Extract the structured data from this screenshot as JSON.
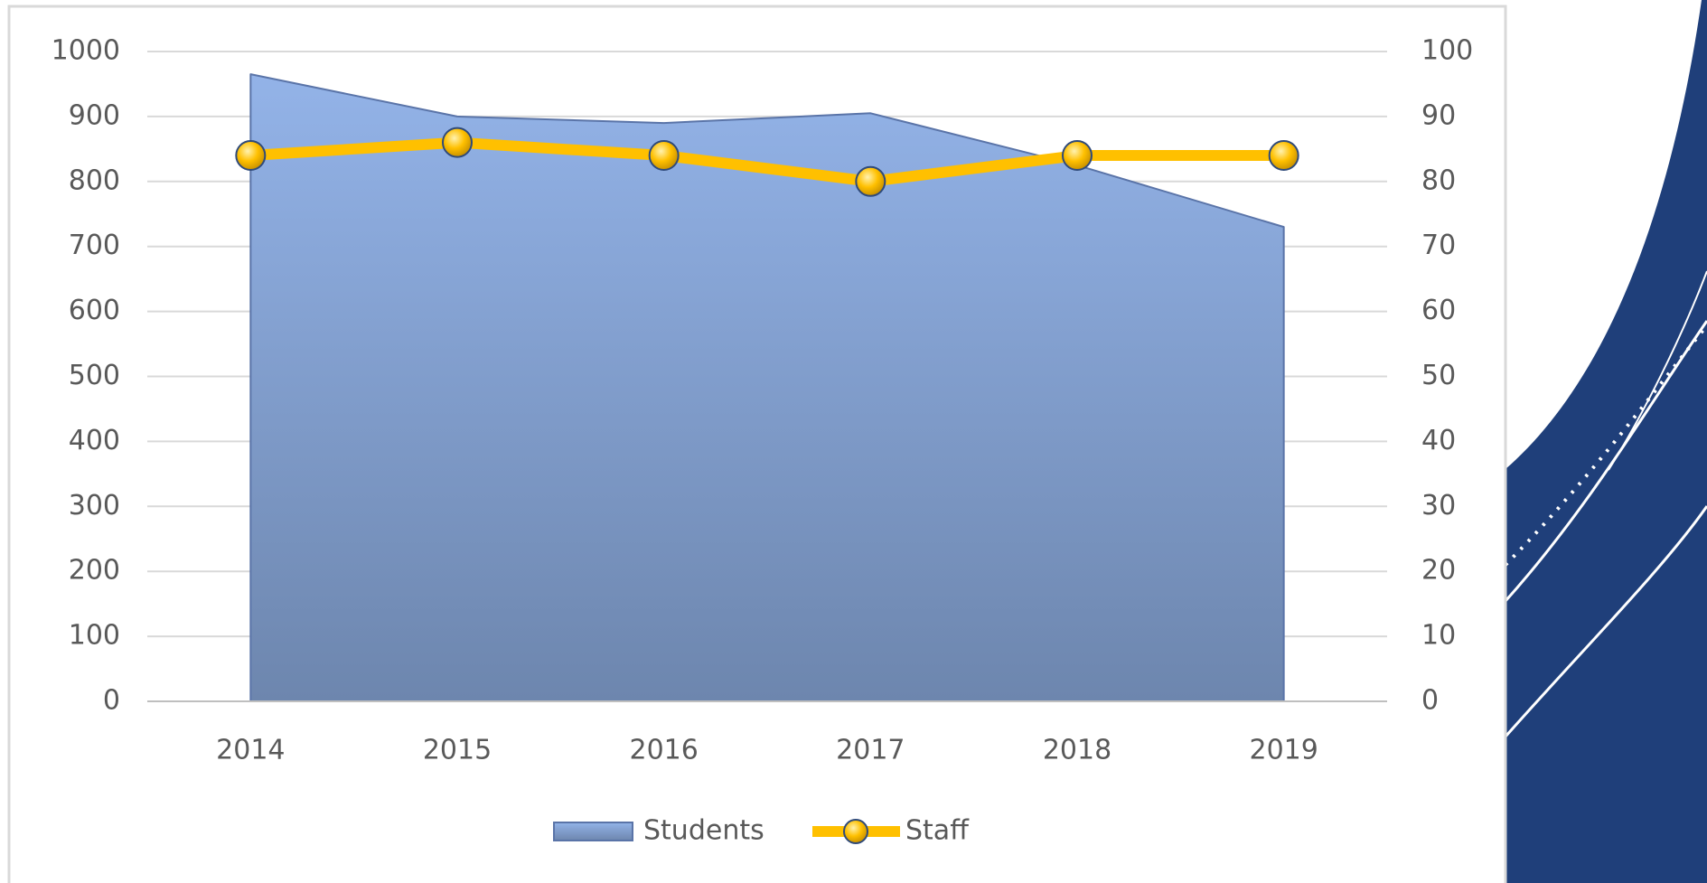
{
  "chart_data": {
    "type": "area-line",
    "categories": [
      "2014",
      "2015",
      "2016",
      "2017",
      "2018",
      "2019"
    ],
    "series": [
      {
        "name": "Students",
        "type": "area",
        "color": "#8eaadb",
        "values": [
          965,
          900,
          890,
          905,
          825,
          730
        ]
      },
      {
        "name": "Staff",
        "type": "line",
        "axis": "y2",
        "color": "#ffc000",
        "values": [
          84,
          86,
          84,
          80,
          84,
          84
        ]
      }
    ],
    "ylim": [
      0,
      1000
    ],
    "yticks": [
      0,
      100,
      200,
      300,
      400,
      500,
      600,
      700,
      800,
      900,
      1000
    ],
    "y2lim": [
      0,
      100
    ],
    "y2ticks": [
      0,
      10,
      20,
      30,
      40,
      50,
      60,
      70,
      80,
      90,
      100
    ],
    "grid": true,
    "legend": "bottom"
  }
}
